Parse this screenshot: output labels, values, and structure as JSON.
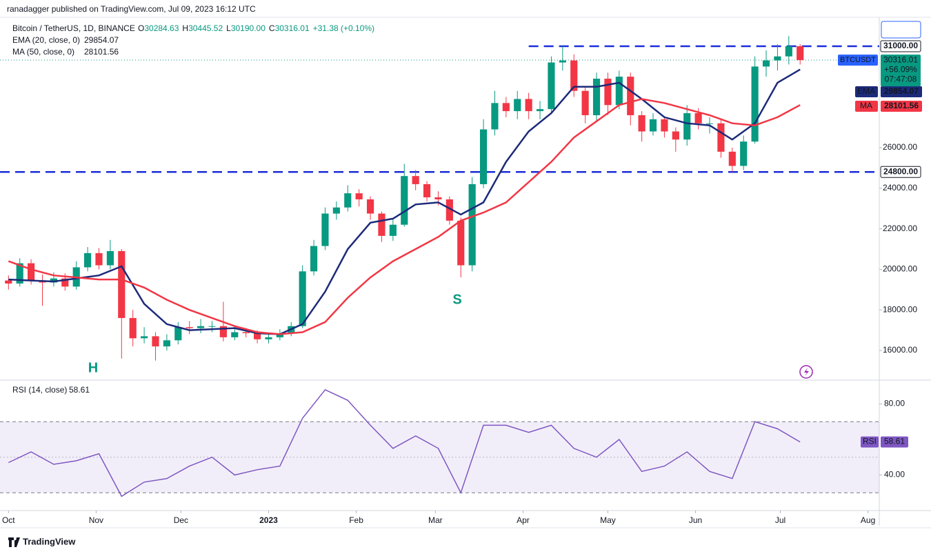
{
  "header": {
    "publisher": "ranadagger published on TradingView.com, Jul 09, 2023 16:12 UTC",
    "symbol": "Bitcoin / TetherUS, 1D, BINANCE",
    "ohlc": [
      [
        "O",
        "30284.63"
      ],
      [
        "H",
        "30445.52"
      ],
      [
        "L",
        "30190.00"
      ],
      [
        "C",
        "30316.01"
      ]
    ],
    "change": "+31.38 (+0.10%)"
  },
  "chart_data": {
    "type": "candlestick",
    "up_color": "#089981",
    "down_color": "#f23645",
    "x": [
      0,
      4,
      8,
      12,
      16,
      20,
      24,
      28,
      32,
      36,
      40,
      44,
      48,
      52,
      56,
      60,
      64,
      68,
      72,
      76,
      80,
      84,
      88,
      92,
      96,
      100,
      104,
      108,
      112,
      116,
      120,
      124,
      128,
      132,
      136,
      140,
      144,
      148,
      152,
      156,
      160,
      164,
      168,
      172,
      176,
      180,
      184,
      188,
      192,
      196,
      200,
      204,
      208,
      212,
      216,
      220,
      224,
      228,
      232,
      236,
      240,
      244,
      248,
      252,
      256,
      260,
      264,
      268,
      272,
      276,
      280
    ],
    "open": [
      19450,
      19300,
      20300,
      19450,
      19350,
      19550,
      19150,
      20100,
      20800,
      20200,
      20900,
      17600,
      16600,
      16700,
      16200,
      16500,
      17150,
      17100,
      17200,
      17200,
      16650,
      16900,
      16850,
      16550,
      16650,
      16850,
      17200,
      19900,
      21150,
      22750,
      23050,
      23750,
      23450,
      22750,
      21650,
      22200,
      24600,
      24200,
      23550,
      23450,
      22400,
      20200,
      24200,
      26900,
      28200,
      27800,
      28400,
      27800,
      27900,
      30200,
      30300,
      28800,
      27600,
      29400,
      28100,
      29500,
      27600,
      26800,
      27400,
      26800,
      26400,
      27700,
      27200,
      27200,
      25800,
      25100,
      26300,
      30000,
      30300,
      30500,
      31000
    ],
    "high": [
      19700,
      20550,
      20500,
      19750,
      19850,
      19800,
      20400,
      21100,
      21050,
      21450,
      21000,
      18000,
      17150,
      16900,
      16800,
      17400,
      17450,
      17550,
      17450,
      18400,
      17200,
      17100,
      17000,
      16850,
      17050,
      17400,
      20200,
      21450,
      23050,
      23350,
      24150,
      23950,
      23600,
      22850,
      22500,
      25200,
      24900,
      24350,
      23850,
      23600,
      22550,
      24550,
      27400,
      28800,
      28500,
      28800,
      28700,
      28300,
      30500,
      31000,
      30600,
      29000,
      29700,
      29700,
      29800,
      29700,
      27800,
      27700,
      27550,
      27000,
      28100,
      27950,
      27500,
      27400,
      26000,
      26600,
      30500,
      30800,
      31100,
      31500,
      31100
    ],
    "low": [
      19000,
      19150,
      19250,
      18200,
      19150,
      18950,
      19000,
      19900,
      20000,
      20000,
      15600,
      16200,
      16350,
      15500,
      16000,
      16300,
      16800,
      16850,
      16900,
      16450,
      16500,
      16650,
      16350,
      16350,
      16500,
      16700,
      17100,
      19700,
      20950,
      22450,
      22850,
      23100,
      22450,
      21350,
      21400,
      22100,
      23900,
      23350,
      23150,
      22200,
      19600,
      19900,
      24000,
      26600,
      27500,
      27400,
      27400,
      27400,
      27700,
      29800,
      28500,
      27200,
      27300,
      27600,
      27900,
      27100,
      26300,
      26600,
      26500,
      25800,
      26100,
      26900,
      26700,
      25500,
      24800,
      24900,
      26200,
      29500,
      29800,
      30100,
      30100
    ],
    "close": [
      19300,
      20300,
      19450,
      19350,
      19550,
      19150,
      20100,
      20800,
      20200,
      20900,
      17600,
      16600,
      16700,
      16200,
      16500,
      17150,
      17100,
      17200,
      17200,
      16650,
      16900,
      16850,
      16550,
      16650,
      16850,
      17200,
      19900,
      21150,
      22750,
      23050,
      23750,
      23450,
      22750,
      21650,
      22200,
      24600,
      24200,
      23550,
      23450,
      22400,
      20200,
      24200,
      26900,
      28200,
      27800,
      28400,
      27800,
      27900,
      30200,
      30300,
      28800,
      27600,
      29400,
      28100,
      29500,
      27600,
      26800,
      27400,
      26800,
      26400,
      27700,
      27200,
      27200,
      25800,
      25100,
      26300,
      30000,
      30300,
      30500,
      31000,
      30316
    ],
    "xlim": [
      -3,
      308
    ],
    "xticks": [
      {
        "value": 0,
        "label": "Oct"
      },
      {
        "value": 31,
        "label": "Nov"
      },
      {
        "value": 61,
        "label": "Dec"
      },
      {
        "value": 92,
        "label": "2023"
      },
      {
        "value": 123,
        "label": "Feb"
      },
      {
        "value": 151,
        "label": "Mar"
      },
      {
        "value": 182,
        "label": "Apr"
      },
      {
        "value": 212,
        "label": "May"
      },
      {
        "value": 243,
        "label": "Jun"
      },
      {
        "value": 273,
        "label": "Jul"
      },
      {
        "value": 304,
        "label": "Aug"
      }
    ],
    "ylim": [
      14570,
      32430
    ],
    "yticks": [
      {
        "value": 16000,
        "label": "16000.00"
      },
      {
        "value": 18000,
        "label": "18000.00"
      },
      {
        "value": 20000,
        "label": "20000.00"
      },
      {
        "value": 22000,
        "label": "22000.00"
      },
      {
        "value": 24000,
        "label": "24000.00"
      },
      {
        "value": 26000,
        "label": "26000.00"
      }
    ],
    "levels": [
      {
        "value": 31000,
        "label": "31000.00"
      },
      {
        "value": 24800,
        "label": "24800.00"
      }
    ],
    "level_color": "#1a2cd8",
    "last_price": {
      "symbol": "BTCUSDT",
      "price": 30316.01,
      "change": "+56.09%",
      "countdown": "07:47:08"
    },
    "line_x": [
      0,
      8,
      16,
      24,
      32,
      40,
      48,
      56,
      64,
      72,
      80,
      88,
      96,
      104,
      112,
      120,
      128,
      136,
      144,
      152,
      160,
      168,
      176,
      184,
      192,
      200,
      208,
      216,
      224,
      232,
      240,
      248,
      256,
      264,
      272,
      280
    ],
    "overlays": [
      {
        "name": "EMA",
        "title": "EMA (20, close, 0)",
        "value_label": "29854.07",
        "color": "#1c2a7a",
        "values": [
          19500,
          19450,
          19400,
          19550,
          19700,
          20150,
          18300,
          17300,
          17000,
          17050,
          17100,
          16850,
          16800,
          17300,
          18900,
          21000,
          22300,
          22500,
          23200,
          23300,
          22700,
          23300,
          25300,
          26800,
          27700,
          29000,
          29000,
          29200,
          28400,
          27500,
          27200,
          27100,
          26400,
          27200,
          29200,
          29854
        ]
      },
      {
        "name": "MA",
        "title": "MA (50, close, 0)",
        "value_label": "28101.56",
        "color": "#f23645",
        "values": [
          20400,
          20000,
          19700,
          19600,
          19500,
          19500,
          19100,
          18500,
          18000,
          17600,
          17200,
          16900,
          16800,
          16900,
          17400,
          18600,
          19600,
          20400,
          21000,
          21600,
          22400,
          22800,
          23300,
          24300,
          25300,
          26500,
          27300,
          28100,
          28400,
          28200,
          27900,
          27600,
          27200,
          27100,
          27500,
          28102
        ]
      }
    ],
    "annotations": [
      "H",
      "S"
    ],
    "rsi": {
      "name": "RSI",
      "title": "RSI (14, close)",
      "value_label": "58.61",
      "color": "#7e57c2",
      "values": [
        47,
        53,
        46,
        48,
        52,
        28,
        36,
        38,
        45,
        50,
        40,
        43,
        45,
        72,
        88,
        82,
        68,
        55,
        62,
        55,
        30,
        68,
        68,
        64,
        68,
        55,
        50,
        60,
        42,
        45,
        53,
        42,
        38,
        70,
        66,
        58.61
      ],
      "ylim": [
        20,
        93
      ],
      "yticks": [
        {
          "value": 40,
          "label": "40.00"
        },
        {
          "value": 80,
          "label": "80.00"
        }
      ],
      "bands": [
        30,
        50,
        70
      ]
    },
    "footer": "TradingView"
  }
}
